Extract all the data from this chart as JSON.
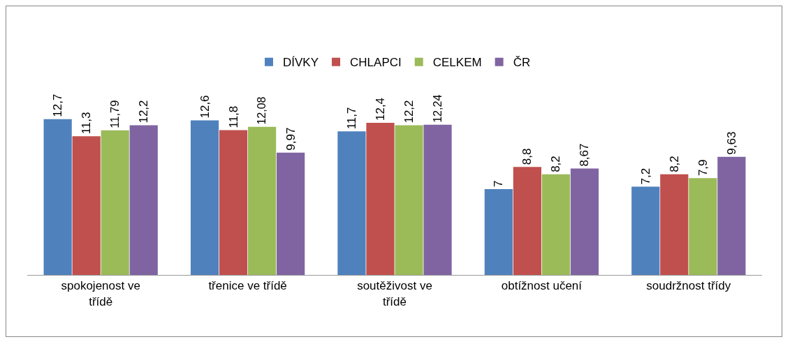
{
  "chart_data": {
    "type": "bar",
    "categories": [
      "spokojenost ve třídě",
      "třenice ve třídě",
      "soutěživost ve třídě",
      "obtížnost učení",
      "soudržnost třídy"
    ],
    "series": [
      {
        "name": "DÍVKY",
        "color": "#4f81bd",
        "values": [
          12.7,
          12.6,
          11.7,
          7,
          7.2
        ],
        "value_labels": [
          "12,7",
          "12,6",
          "11,7",
          "7",
          "7,2"
        ]
      },
      {
        "name": "CHLAPCI",
        "color": "#c0504d",
        "values": [
          11.3,
          11.8,
          12.4,
          8.8,
          8.2
        ],
        "value_labels": [
          "11,3",
          "11,8",
          "12,4",
          "8,8",
          "8,2"
        ]
      },
      {
        "name": "CELKEM",
        "color": "#9bbb59",
        "values": [
          11.79,
          12.08,
          12.2,
          8.2,
          7.9
        ],
        "value_labels": [
          "11,79",
          "12,08",
          "12,2",
          "8,2",
          "7,9"
        ]
      },
      {
        "name": "ČR",
        "color": "#8064a2",
        "values": [
          12.2,
          9.97,
          12.24,
          8.67,
          9.63
        ],
        "value_labels": [
          "12,2",
          "9,97",
          "12,24",
          "8,67",
          "9,63"
        ]
      }
    ],
    "legend": "top",
    "grid": false
  }
}
